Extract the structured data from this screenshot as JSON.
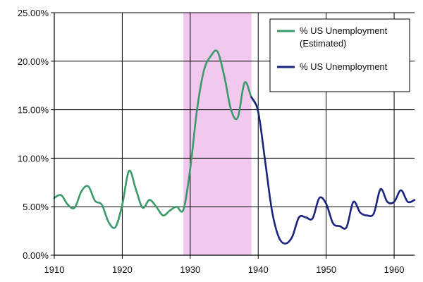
{
  "chart_data": {
    "type": "line",
    "title": "",
    "xlabel": "",
    "ylabel": "",
    "xlim": [
      1910,
      1963
    ],
    "ylim": [
      0,
      25
    ],
    "x_ticks": [
      1910,
      1920,
      1930,
      1940,
      1950,
      1960
    ],
    "x_tick_labels": [
      "1910",
      "1920",
      "1930",
      "1940",
      "1950",
      "1960"
    ],
    "y_ticks": [
      0,
      5,
      10,
      15,
      20,
      25
    ],
    "y_tick_labels": [
      "0.00%",
      "5.00%",
      "10.00%",
      "15.00%",
      "20.00%",
      "25.00%"
    ],
    "grid": true,
    "legend_position": "top-right",
    "shaded_region": {
      "x_start": 1929,
      "x_end": 1939,
      "color": "#f2c9ee"
    },
    "series": [
      {
        "name": "% US Unemployment (Estimated)",
        "legend_lines": [
          "% US Unemployment",
          "(Estimated)"
        ],
        "color": "#3a9a6a",
        "x": [
          1910,
          1911,
          1912,
          1913,
          1914,
          1915,
          1916,
          1917,
          1918,
          1919,
          1920,
          1921,
          1922,
          1923,
          1924,
          1925,
          1926,
          1927,
          1928,
          1929,
          1930,
          1931,
          1932,
          1933,
          1934,
          1935,
          1936,
          1937,
          1938,
          1939,
          1940
        ],
        "y": [
          5.9,
          6.2,
          5.2,
          4.9,
          6.6,
          7.1,
          5.6,
          5.2,
          3.4,
          2.9,
          5.2,
          8.7,
          6.8,
          4.9,
          5.7,
          5.0,
          4.1,
          4.6,
          5.0,
          4.7,
          8.9,
          15.0,
          19.0,
          20.5,
          21.0,
          18.5,
          15.0,
          14.2,
          17.8,
          16.3,
          15.2
        ]
      },
      {
        "name": "% US Unemployment",
        "legend_lines": [
          "% US Unemployment"
        ],
        "color": "#1a237e",
        "x": [
          1939,
          1940,
          1941,
          1942,
          1943,
          1944,
          1945,
          1946,
          1947,
          1948,
          1949,
          1950,
          1951,
          1952,
          1953,
          1954,
          1955,
          1956,
          1957,
          1958,
          1959,
          1960,
          1961,
          1962,
          1963
        ],
        "y": [
          16.3,
          14.8,
          9.8,
          4.7,
          1.9,
          1.2,
          1.9,
          3.9,
          3.9,
          3.8,
          5.9,
          5.3,
          3.3,
          3.0,
          2.9,
          5.5,
          4.4,
          4.1,
          4.3,
          6.8,
          5.5,
          5.5,
          6.7,
          5.5,
          5.7
        ]
      }
    ]
  }
}
